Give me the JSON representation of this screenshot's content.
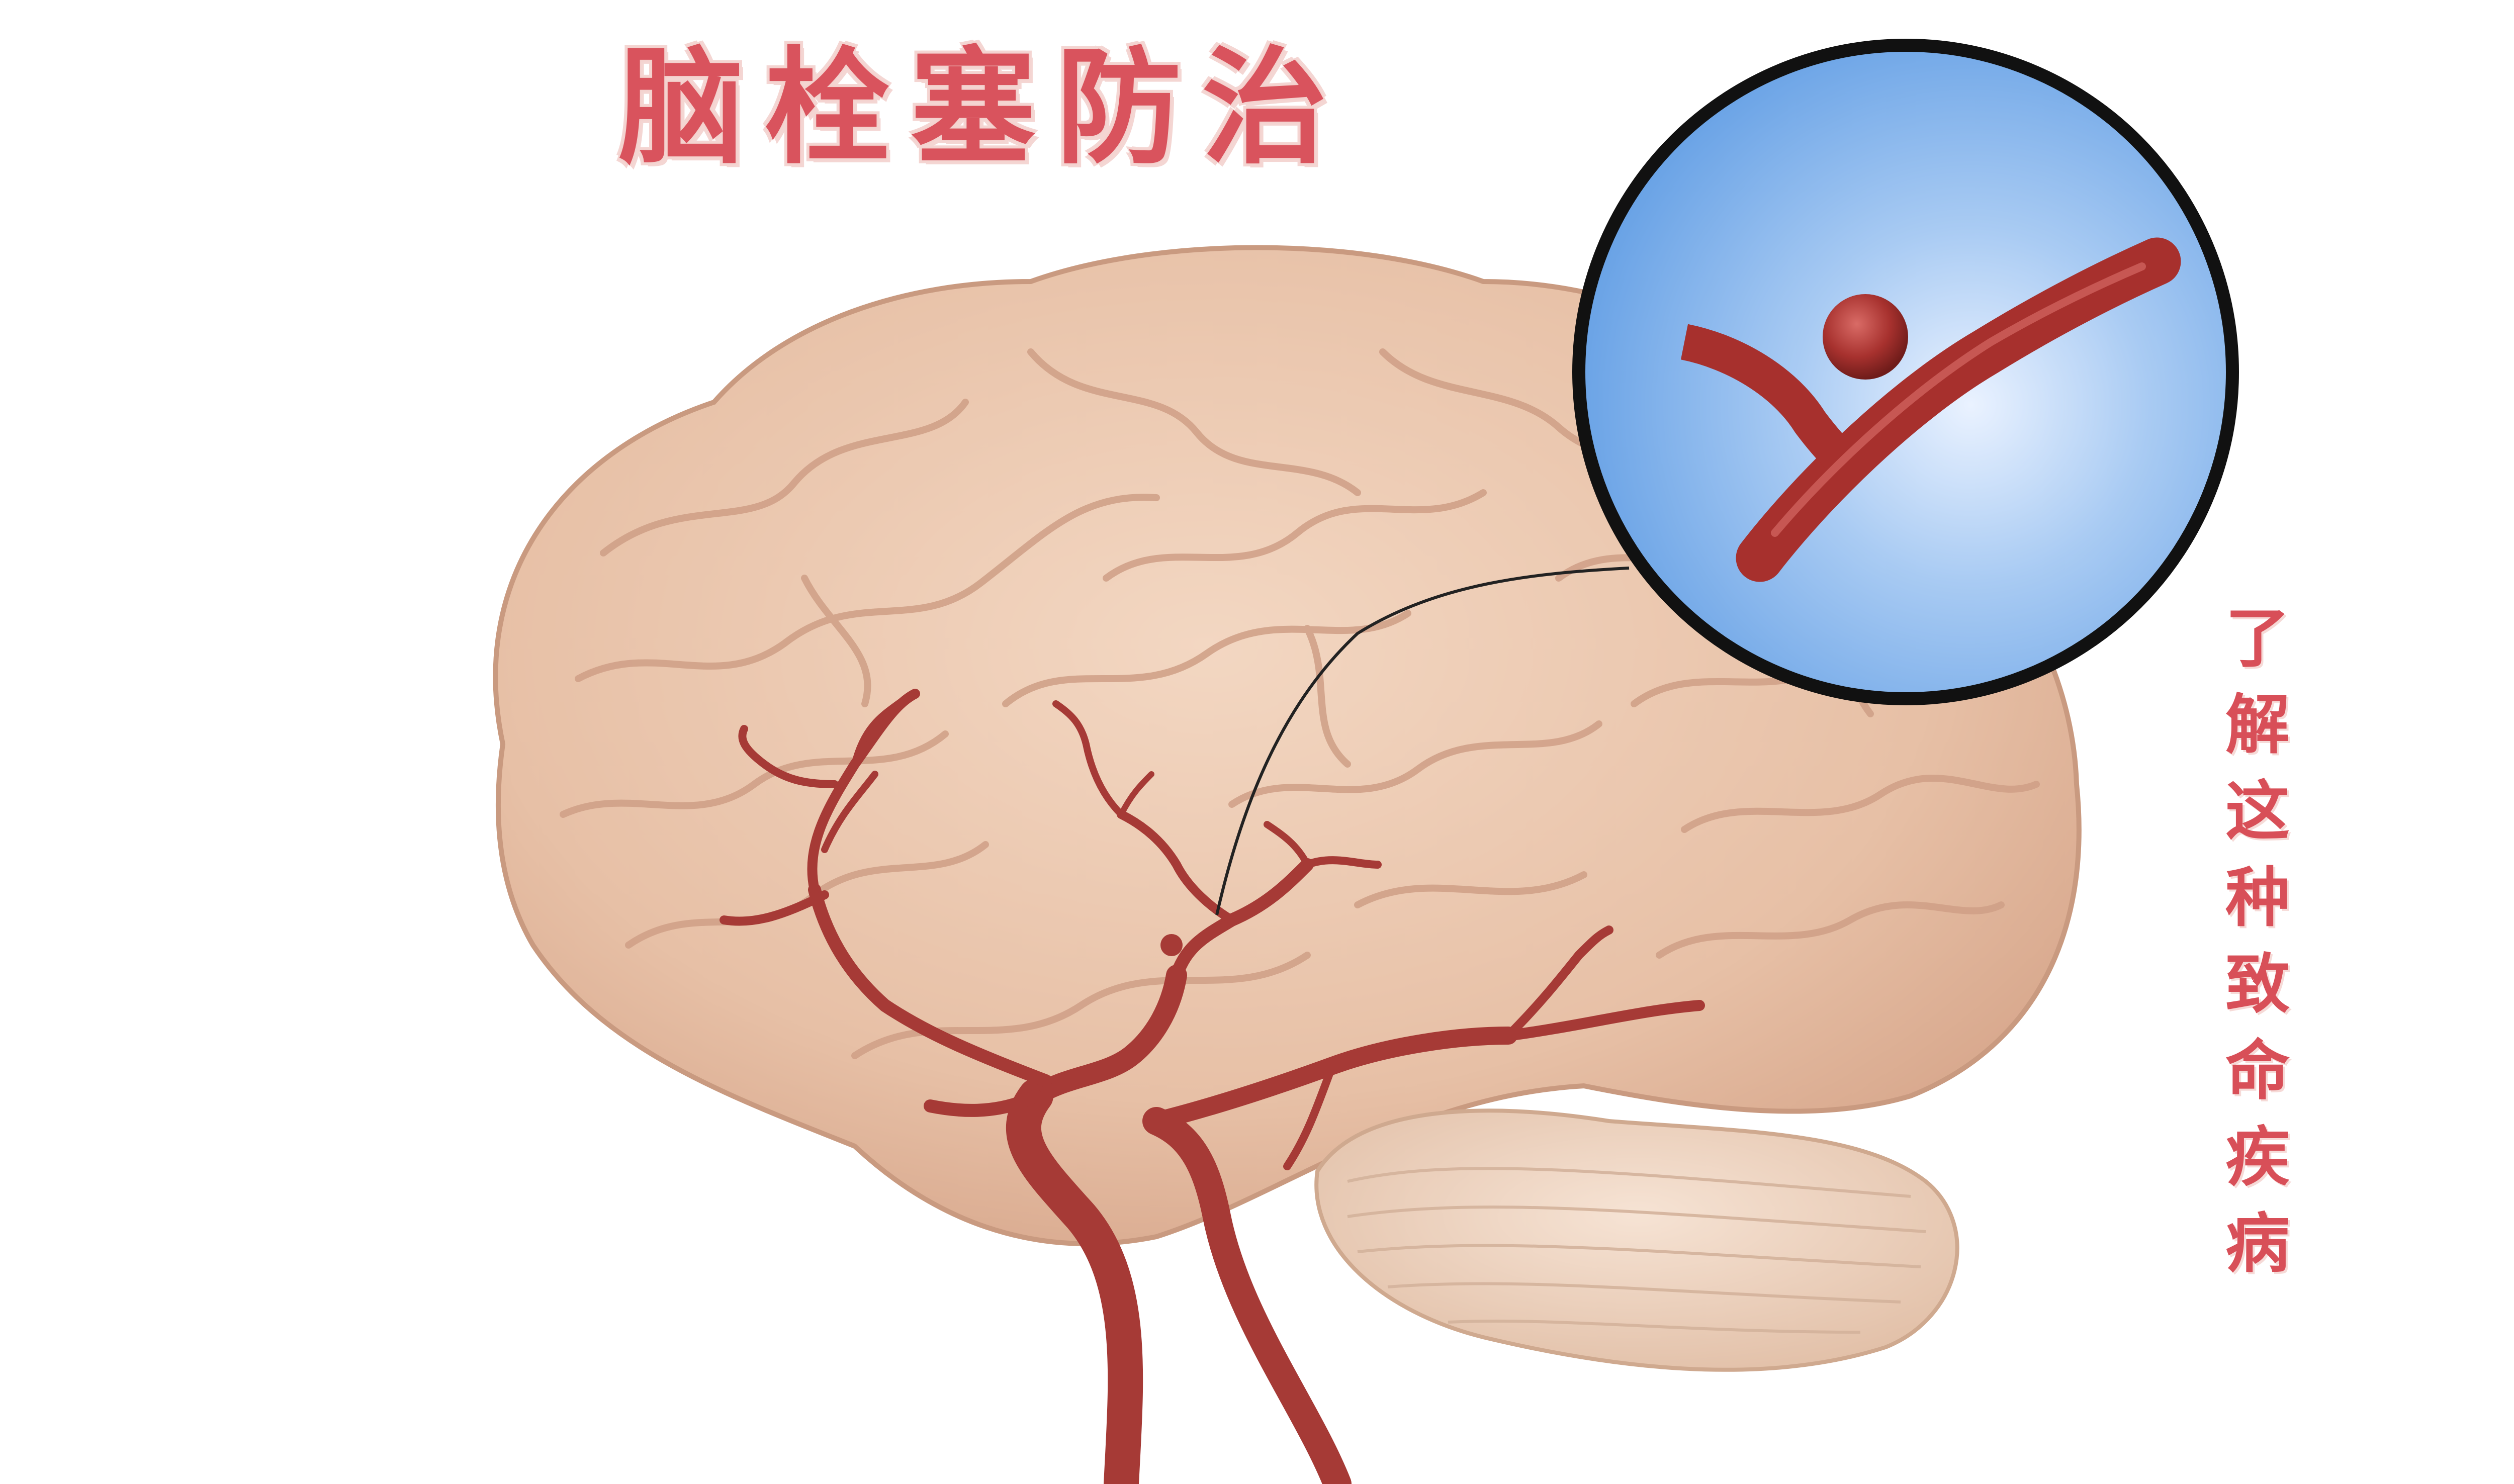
{
  "title": "脑栓塞防治",
  "side_text": [
    "了",
    "解",
    "这",
    "种",
    "致",
    "命",
    "疾",
    "病"
  ],
  "colors": {
    "title": "#d9535d",
    "side_text": "#d84f58",
    "brain": "#e8c3aa",
    "cerebellum": "#efd6c2",
    "artery": "#a63a36",
    "inset_bg": "#7db0ea",
    "inset_ring": "#111111"
  },
  "icons": {
    "brain": "brain-illustration",
    "inset": "aneurysm-magnifier",
    "arteries": "cerebral-artery-tree"
  }
}
